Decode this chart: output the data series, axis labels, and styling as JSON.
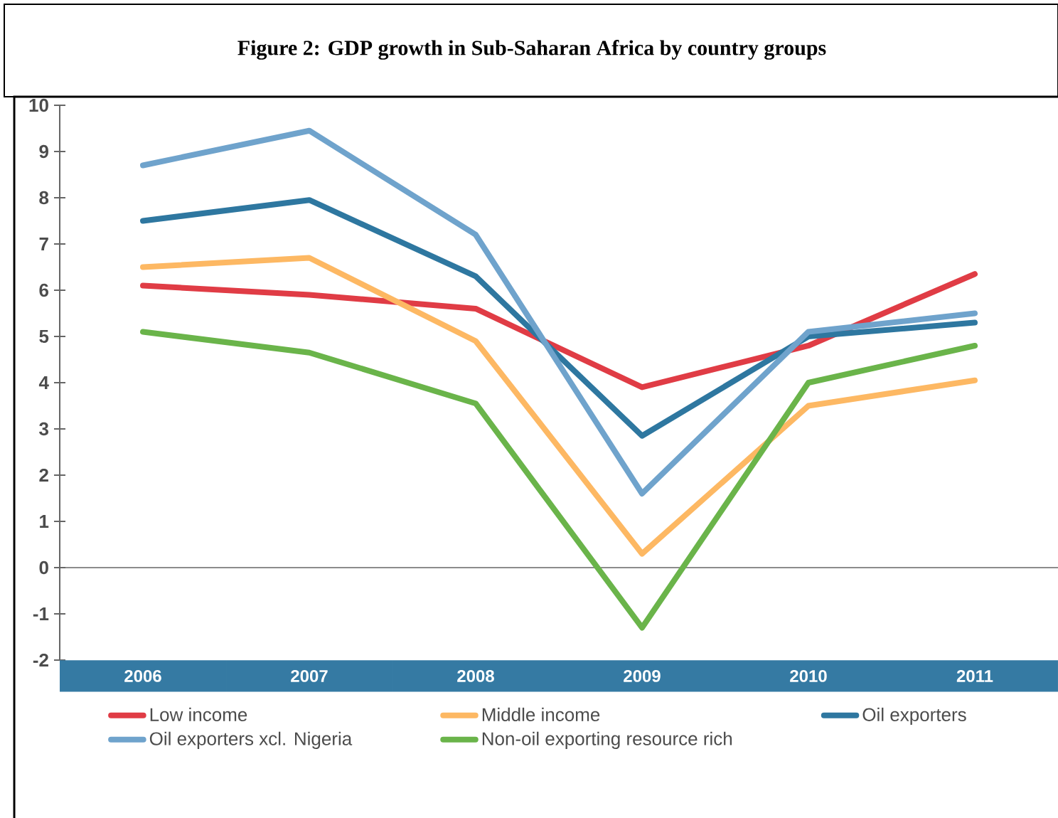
{
  "chart_data": {
    "type": "line",
    "title": "Figure 2: GDP growth in Sub-Saharan Africa by country groups",
    "categories": [
      "2006",
      "2007",
      "2008",
      "2009",
      "2010",
      "2011"
    ],
    "series": [
      {
        "name": "Low income",
        "color": "#e03c45",
        "values": [
          6.1,
          5.9,
          5.6,
          3.9,
          4.8,
          6.35
        ]
      },
      {
        "name": "Middle income",
        "color": "#fdb863",
        "values": [
          6.5,
          6.7,
          4.9,
          0.3,
          3.5,
          4.05
        ]
      },
      {
        "name": "Oil exporters",
        "color": "#2e77a0",
        "values": [
          7.5,
          7.95,
          6.3,
          2.85,
          5.0,
          5.3
        ]
      },
      {
        "name": "Oil exporters xcl. Nigeria",
        "color": "#6fa3cc",
        "values": [
          8.7,
          9.45,
          7.2,
          1.6,
          5.1,
          5.5
        ]
      },
      {
        "name": "Non-oil exporting resource rich",
        "color": "#6ab44a",
        "values": [
          5.1,
          4.65,
          3.55,
          -1.3,
          4.0,
          4.8
        ]
      }
    ],
    "ylim": [
      -2,
      10
    ],
    "yticks": [
      -2,
      -1,
      0,
      1,
      2,
      3,
      4,
      5,
      6,
      7,
      8,
      9,
      10
    ],
    "legend": "bottom"
  }
}
